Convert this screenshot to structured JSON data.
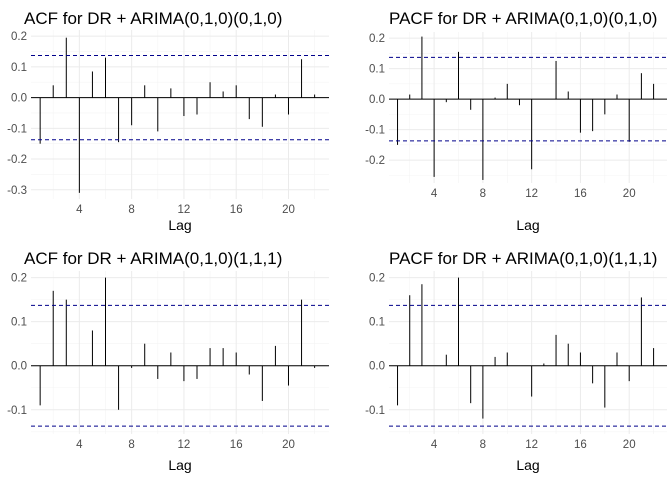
{
  "chart_data": [
    {
      "type": "bar",
      "title": "ACF for DR + ARIMA(0,1,0)(0,1,0)",
      "xlabel": "Lag",
      "ylabel": "",
      "x_ticks": [
        4,
        8,
        12,
        16,
        20
      ],
      "y_ticks": [
        -0.3,
        -0.2,
        -0.1,
        0.0,
        0.1,
        0.2
      ],
      "ylim": [
        -0.33,
        0.22
      ],
      "xlim": [
        0.3,
        23.1
      ],
      "ci": 0.137,
      "lags": [
        1,
        2,
        3,
        4,
        5,
        6,
        7,
        8,
        9,
        10,
        11,
        12,
        13,
        14,
        15,
        16,
        17,
        18,
        19,
        20,
        21,
        22
      ],
      "values": [
        -0.15,
        0.04,
        0.195,
        -0.31,
        0.085,
        0.13,
        -0.145,
        -0.09,
        0.04,
        -0.11,
        0.03,
        -0.06,
        -0.055,
        0.05,
        0.02,
        0.04,
        -0.07,
        -0.095,
        0.01,
        -0.055,
        0.125,
        0.01
      ]
    },
    {
      "type": "bar",
      "title": "PACF for DR + ARIMA(0,1,0)(0,1,0)",
      "xlabel": "Lag",
      "ylabel": "",
      "x_ticks": [
        4,
        8,
        12,
        16,
        20
      ],
      "y_ticks": [
        -0.2,
        -0.1,
        0.0,
        0.1,
        0.2
      ],
      "ylim": [
        -0.275,
        0.22
      ],
      "xlim": [
        0.3,
        23.1
      ],
      "ci": 0.137,
      "lags": [
        1,
        2,
        3,
        4,
        5,
        6,
        7,
        8,
        9,
        10,
        11,
        12,
        13,
        14,
        15,
        16,
        17,
        18,
        19,
        20,
        21,
        22
      ],
      "values": [
        -0.15,
        0.015,
        0.205,
        -0.255,
        -0.01,
        0.155,
        -0.035,
        -0.265,
        0.005,
        0.05,
        -0.02,
        -0.23,
        0.0,
        0.125,
        0.025,
        -0.11,
        -0.105,
        -0.05,
        0.015,
        -0.14,
        0.085,
        0.05
      ]
    },
    {
      "type": "bar",
      "title": "ACF for DR + ARIMA(0,1,0)(1,1,1)",
      "xlabel": "Lag",
      "ylabel": "",
      "x_ticks": [
        4,
        8,
        12,
        16,
        20
      ],
      "y_ticks": [
        -0.1,
        0.0,
        0.1,
        0.2
      ],
      "ylim": [
        -0.155,
        0.215
      ],
      "xlim": [
        0.3,
        23.1
      ],
      "ci": 0.137,
      "lags": [
        1,
        2,
        3,
        4,
        5,
        6,
        7,
        8,
        9,
        10,
        11,
        12,
        13,
        14,
        15,
        16,
        17,
        18,
        19,
        20,
        21,
        22
      ],
      "values": [
        -0.09,
        0.17,
        0.15,
        0.0,
        0.08,
        0.2,
        -0.1,
        -0.005,
        0.05,
        -0.03,
        0.03,
        -0.035,
        -0.03,
        0.04,
        0.04,
        0.03,
        -0.02,
        -0.08,
        0.045,
        -0.045,
        0.15,
        -0.005
      ]
    },
    {
      "type": "bar",
      "title": "PACF for DR + ARIMA(0,1,0)(1,1,1)",
      "xlabel": "Lag",
      "ylabel": "",
      "x_ticks": [
        4,
        8,
        12,
        16,
        20
      ],
      "y_ticks": [
        -0.1,
        0.0,
        0.1,
        0.2
      ],
      "ylim": [
        -0.155,
        0.215
      ],
      "xlim": [
        0.3,
        23.1
      ],
      "ci": 0.137,
      "lags": [
        1,
        2,
        3,
        4,
        5,
        6,
        7,
        8,
        9,
        10,
        11,
        12,
        13,
        14,
        15,
        16,
        17,
        18,
        19,
        20,
        21,
        22
      ],
      "values": [
        -0.09,
        0.16,
        0.185,
        0.0,
        0.025,
        0.2,
        -0.085,
        -0.12,
        0.02,
        0.03,
        0.0,
        -0.07,
        0.005,
        0.07,
        0.05,
        0.03,
        -0.04,
        -0.095,
        0.03,
        -0.035,
        0.155,
        0.04
      ]
    }
  ]
}
